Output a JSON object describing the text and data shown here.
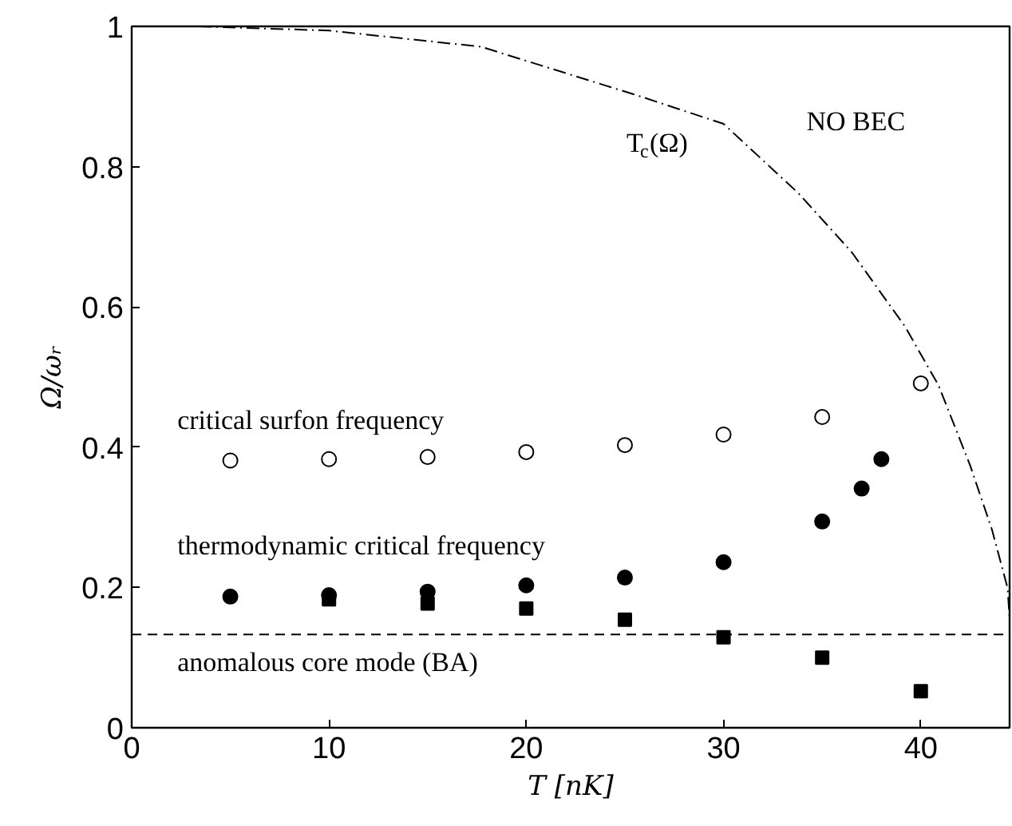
{
  "chart_data": {
    "type": "scatter",
    "xlabel": "T [nK]",
    "ylabel": "Ω/ωᵣ",
    "xlim": [
      0,
      44.5
    ],
    "ylim": [
      0,
      1
    ],
    "xticks": [
      0,
      10,
      20,
      30,
      40
    ],
    "yticks": [
      0,
      0.2,
      0.4,
      0.6,
      0.8,
      1
    ],
    "x": [
      5,
      10,
      15,
      20,
      25,
      30,
      35,
      40
    ],
    "series": [
      {
        "name": "critical surfon frequency",
        "marker": "circle_open",
        "color": "#000000",
        "values": [
          0.381,
          0.383,
          0.386,
          0.393,
          0.403,
          0.418,
          0.443,
          0.491
        ]
      },
      {
        "name": "thermodynamic critical frequency",
        "marker": "circle",
        "color": "#000000",
        "x": [
          5,
          10,
          15,
          20,
          25,
          30,
          35,
          37,
          38
        ],
        "values": [
          0.187,
          0.189,
          0.194,
          0.203,
          0.214,
          0.236,
          0.294,
          0.341,
          0.383
        ]
      },
      {
        "name": "anomalous core mode (BA)",
        "marker": "square",
        "color": "#000000",
        "values": [
          null,
          0.183,
          0.177,
          0.17,
          0.154,
          0.129,
          0.1,
          0.052
        ]
      },
      {
        "name": "T$_{c}$(Ω)",
        "type": "line",
        "line_style": "dashdot",
        "color": "#000000",
        "x": [
          3.4,
          10,
          17.7,
          25.8,
          30,
          33.8,
          36.5,
          39.2,
          40.9,
          42.5,
          43.6,
          44.4,
          44.5
        ],
        "values": [
          1.0,
          0.994,
          0.971,
          0.9,
          0.861,
          0.762,
          0.678,
          0.572,
          0.488,
          0.374,
          0.283,
          0.199,
          0.154
        ]
      }
    ],
    "ref_lines": [
      {
        "axis": "y",
        "value": 0.133,
        "color": "#000000",
        "line_style": "dashed"
      }
    ],
    "annotations": [
      "NO BEC"
    ],
    "grid": false,
    "legend": false
  }
}
